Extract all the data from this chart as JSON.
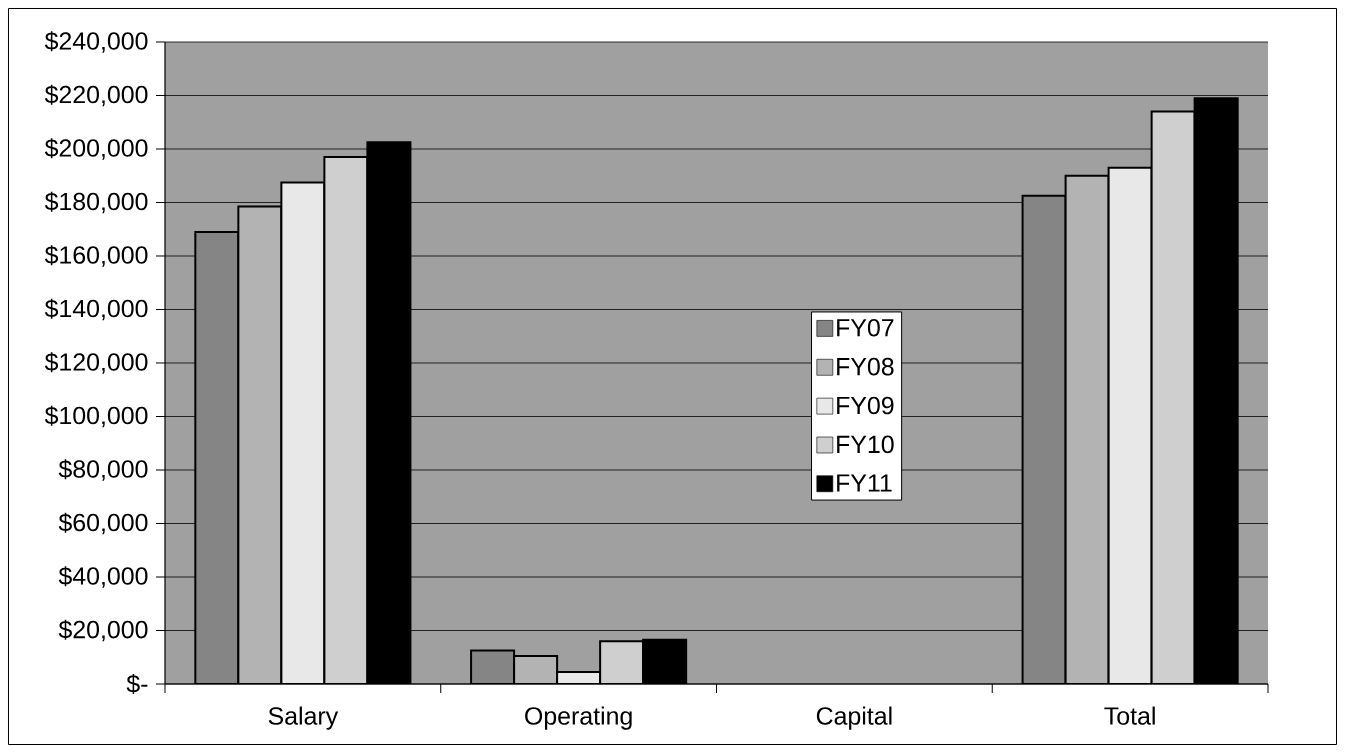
{
  "chart_data": {
    "type": "bar",
    "categories": [
      "Salary",
      "Operating",
      "Capital",
      "Total"
    ],
    "series": [
      {
        "name": "FY07",
        "color": "#858585",
        "values": [
          169000,
          12500,
          null,
          182500
        ]
      },
      {
        "name": "FY08",
        "color": "#b3b3b3",
        "values": [
          178500,
          10500,
          null,
          190000
        ]
      },
      {
        "name": "FY09",
        "color": "#e8e8e8",
        "values": [
          187500,
          4500,
          null,
          193000
        ]
      },
      {
        "name": "FY10",
        "color": "#cfcfcf",
        "values": [
          197000,
          16000,
          null,
          214000
        ]
      },
      {
        "name": "FY11",
        "color": "#000000",
        "values": [
          202500,
          16500,
          null,
          219000
        ]
      }
    ],
    "ylim": [
      0,
      240000
    ],
    "yticks": [
      {
        "value": 0,
        "label": "$-"
      },
      {
        "value": 20000,
        "label": "$20,000"
      },
      {
        "value": 40000,
        "label": "$40,000"
      },
      {
        "value": 60000,
        "label": "$60,000"
      },
      {
        "value": 80000,
        "label": "$80,000"
      },
      {
        "value": 100000,
        "label": "$100,000"
      },
      {
        "value": 120000,
        "label": "$120,000"
      },
      {
        "value": 140000,
        "label": "$140,000"
      },
      {
        "value": 160000,
        "label": "$160,000"
      },
      {
        "value": 180000,
        "label": "$180,000"
      },
      {
        "value": 200000,
        "label": "$200,000"
      },
      {
        "value": 220000,
        "label": "$220,000"
      },
      {
        "value": 240000,
        "label": "$240,000"
      }
    ],
    "grid": "y",
    "legend": "center"
  }
}
